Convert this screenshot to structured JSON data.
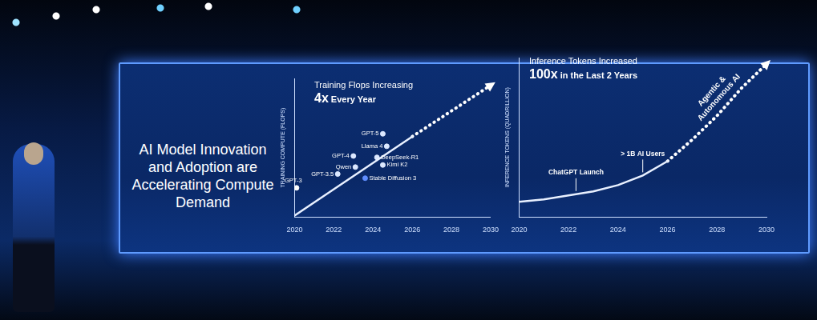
{
  "headline": "AI Model Innovation and Adoption are Accelerating Compute Demand",
  "chart_data": [
    {
      "type": "scatter",
      "title": "Training Flops Increasing",
      "subtitle": "4x Every Year",
      "y_label": "TRAINING COMPUTE (FLOPS)",
      "labels": [
        "GPT-3",
        "GPT-3.5",
        "GPT-4",
        "Qwen",
        "Llama 4",
        "GPT-5",
        "DeepSeek-R1",
        "Kimi K2",
        "Stable Diffusion 3"
      ],
      "x": [
        2020.1,
        2022.2,
        2023.0,
        2023.1,
        2024.7,
        2024.5,
        2024.2,
        2024.5,
        2023.6
      ],
      "values": [
        21,
        31,
        44,
        36,
        51,
        60,
        43,
        37.5,
        28
      ],
      "colors": [
        "#ffffff",
        "#dce8ff",
        "#dce8ff",
        "#dce8ff",
        "#dce8ff",
        "#dce8ff",
        "#dce8ff",
        "#dce8ff",
        "#5f8dff"
      ],
      "marker": "circle",
      "series": [
        {
          "type": "line",
          "line_style": "solid",
          "color": "#e8f0ff",
          "x": [
            2020,
            2026
          ],
          "values": [
            1,
            58
          ]
        },
        {
          "type": "line",
          "line_style": "dotted",
          "color": "#ffffff",
          "x": [
            2026,
            2030
          ],
          "values": [
            58,
            95
          ]
        }
      ],
      "xlim": [
        2020,
        2030
      ],
      "xticks": [
        2020,
        2022,
        2024,
        2026,
        2028,
        2030
      ],
      "ylim": [
        0,
        100
      ],
      "tick_labels": "x",
      "grid": false
    },
    {
      "type": "line",
      "title": "Inference Tokens Increased",
      "subtitle": "100x in the Last 2 Years",
      "y_label": "INFERENCE TOKENS (QUADRILLION)",
      "x": [
        2020,
        2021,
        2022,
        2023,
        2024,
        2025,
        2026,
        2027,
        2028,
        2029,
        2030
      ],
      "series": [
        {
          "line_style": "solid",
          "color": "#e8f0ff",
          "values": [
            9.5,
            11,
            13.5,
            16,
            20,
            26,
            35,
            null,
            null,
            null,
            null
          ]
        },
        {
          "line_style": "dotted",
          "color": "#ffffff",
          "values": [
            null,
            null,
            null,
            null,
            null,
            null,
            35,
            48.5,
            63.5,
            81,
            96
          ]
        }
      ],
      "annotations": [
        {
          "text": "ChatGPT Launch",
          "x": 2022.3
        },
        {
          "text": "> 1B AI Users",
          "x": 2025
        },
        {
          "text": "Agentic & Autonomous AI",
          "x": 2028.4
        }
      ],
      "xlim": [
        2020,
        2030
      ],
      "xticks": [
        2020,
        2022,
        2024,
        2026,
        2028,
        2030
      ],
      "ylim": [
        0,
        100
      ],
      "tick_labels": "x",
      "grid": false
    }
  ]
}
